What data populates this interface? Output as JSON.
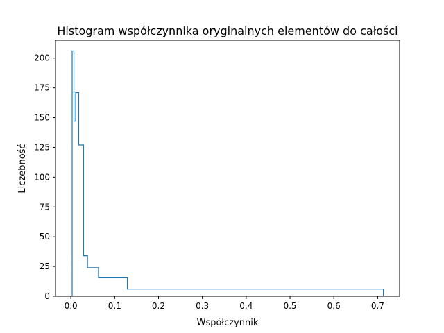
{
  "chart_data": {
    "type": "histogram",
    "title": "Histogram współczynnika oryginalnych elementów do całości",
    "xlabel": "Współczynnik",
    "ylabel": "Liczebność",
    "xlim": [
      -0.035,
      0.75
    ],
    "ylim": [
      0,
      215
    ],
    "xticks": [
      0.0,
      0.1,
      0.2,
      0.3,
      0.4,
      0.5,
      0.6,
      0.7
    ],
    "xtick_labels": [
      "0.0",
      "0.1",
      "0.2",
      "0.3",
      "0.4",
      "0.5",
      "0.6",
      "0.7"
    ],
    "yticks": [
      0,
      25,
      50,
      75,
      100,
      125,
      150,
      175,
      200
    ],
    "ytick_labels": [
      "0",
      "25",
      "50",
      "75",
      "100",
      "125",
      "150",
      "175",
      "200"
    ],
    "histtype": "step",
    "bin_edges": [
      0.003,
      0.007,
      0.011,
      0.018,
      0.029,
      0.038,
      0.063,
      0.129,
      0.713
    ],
    "counts": [
      206,
      147,
      171,
      127,
      34,
      24,
      16,
      6
    ],
    "grid": false,
    "colors": {
      "line": "#1f77b4",
      "axes": "#000000"
    }
  }
}
